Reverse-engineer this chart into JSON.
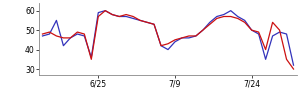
{
  "blue": [
    47,
    48,
    55,
    42,
    46,
    48,
    47,
    36,
    59,
    60,
    58,
    57,
    57,
    56,
    55,
    54,
    53,
    42,
    40,
    44,
    46,
    46,
    47,
    50,
    54,
    57,
    58,
    60,
    57,
    55,
    50,
    48,
    35,
    47,
    49,
    48,
    32
  ],
  "red": [
    48,
    49,
    47,
    46,
    46,
    49,
    48,
    35,
    57,
    60,
    58,
    57,
    58,
    57,
    55,
    54,
    53,
    42,
    43,
    45,
    46,
    47,
    47,
    50,
    53,
    56,
    57,
    57,
    56,
    54,
    50,
    49,
    40,
    54,
    50,
    35,
    30
  ],
  "xtick_positions": [
    8,
    19,
    30
  ],
  "xtick_labels": [
    "6/25",
    "7/9",
    "7/24"
  ],
  "ytick_positions": [
    30,
    40,
    50,
    60
  ],
  "ytick_labels": [
    "30",
    "40",
    "50",
    "60"
  ],
  "ylim": [
    27,
    64
  ],
  "xlim": [
    -0.5,
    36.5
  ],
  "blue_color": "#3333bb",
  "red_color": "#cc1111",
  "bg_color": "#ffffff",
  "linewidth": 0.9,
  "figwidth": 3.0,
  "figheight": 0.96,
  "dpi": 100
}
